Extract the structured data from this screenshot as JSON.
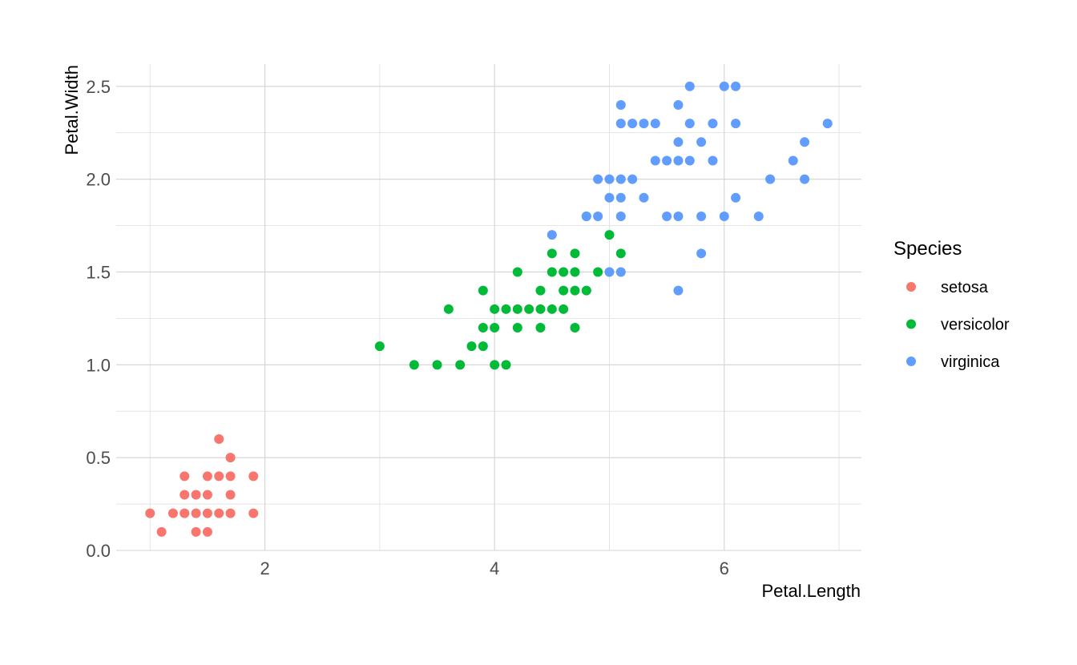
{
  "chart_data": {
    "type": "scatter",
    "title": "",
    "xlabel": "Petal.Length",
    "ylabel": "Petal.Width",
    "xlim": [
      0.705,
      7.195
    ],
    "ylim": [
      0.0,
      2.62
    ],
    "x_ticks": [
      2,
      4,
      6
    ],
    "x_tick_labels": [
      "2",
      "4",
      "6"
    ],
    "x_minor_ticks": [
      1,
      3,
      5,
      7
    ],
    "y_ticks": [
      0.0,
      0.5,
      1.0,
      1.5,
      2.0,
      2.5
    ],
    "y_tick_labels": [
      "0.0",
      "0.5",
      "1.0",
      "1.5",
      "2.0",
      "2.5"
    ],
    "y_minor_ticks": [
      0.25,
      0.75,
      1.25,
      1.75,
      2.25
    ],
    "grid": true,
    "legend": {
      "title": "Species",
      "placement": "right"
    },
    "series": [
      {
        "name": "setosa",
        "color": "#F8766D",
        "points": [
          [
            1.0,
            0.2
          ],
          [
            1.1,
            0.1
          ],
          [
            1.2,
            0.2
          ],
          [
            1.3,
            0.2
          ],
          [
            1.3,
            0.3
          ],
          [
            1.3,
            0.4
          ],
          [
            1.4,
            0.1
          ],
          [
            1.4,
            0.2
          ],
          [
            1.4,
            0.3
          ],
          [
            1.5,
            0.1
          ],
          [
            1.5,
            0.2
          ],
          [
            1.5,
            0.3
          ],
          [
            1.5,
            0.4
          ],
          [
            1.6,
            0.2
          ],
          [
            1.6,
            0.4
          ],
          [
            1.6,
            0.6
          ],
          [
            1.7,
            0.2
          ],
          [
            1.7,
            0.3
          ],
          [
            1.7,
            0.4
          ],
          [
            1.7,
            0.5
          ],
          [
            1.9,
            0.2
          ],
          [
            1.9,
            0.4
          ]
        ]
      },
      {
        "name": "versicolor",
        "color": "#00BA38",
        "points": [
          [
            3.0,
            1.1
          ],
          [
            3.3,
            1.0
          ],
          [
            3.5,
            1.0
          ],
          [
            3.6,
            1.3
          ],
          [
            3.7,
            1.0
          ],
          [
            3.8,
            1.1
          ],
          [
            3.9,
            1.1
          ],
          [
            3.9,
            1.2
          ],
          [
            3.9,
            1.4
          ],
          [
            4.0,
            1.0
          ],
          [
            4.0,
            1.2
          ],
          [
            4.0,
            1.3
          ],
          [
            4.1,
            1.0
          ],
          [
            4.1,
            1.3
          ],
          [
            4.2,
            1.2
          ],
          [
            4.2,
            1.3
          ],
          [
            4.2,
            1.5
          ],
          [
            4.3,
            1.3
          ],
          [
            4.4,
            1.2
          ],
          [
            4.4,
            1.3
          ],
          [
            4.4,
            1.4
          ],
          [
            4.5,
            1.3
          ],
          [
            4.5,
            1.5
          ],
          [
            4.5,
            1.6
          ],
          [
            4.6,
            1.3
          ],
          [
            4.6,
            1.4
          ],
          [
            4.6,
            1.5
          ],
          [
            4.7,
            1.2
          ],
          [
            4.7,
            1.4
          ],
          [
            4.7,
            1.5
          ],
          [
            4.7,
            1.6
          ],
          [
            4.8,
            1.4
          ],
          [
            4.8,
            1.8
          ],
          [
            4.9,
            1.5
          ],
          [
            5.0,
            1.7
          ],
          [
            5.1,
            1.6
          ]
        ]
      },
      {
        "name": "virginica",
        "color": "#619CFF",
        "points": [
          [
            4.5,
            1.7
          ],
          [
            4.8,
            1.8
          ],
          [
            4.9,
            1.8
          ],
          [
            4.9,
            2.0
          ],
          [
            5.0,
            1.5
          ],
          [
            5.0,
            1.9
          ],
          [
            5.0,
            2.0
          ],
          [
            5.1,
            1.5
          ],
          [
            5.1,
            1.8
          ],
          [
            5.1,
            1.9
          ],
          [
            5.1,
            2.0
          ],
          [
            5.1,
            2.3
          ],
          [
            5.1,
            2.4
          ],
          [
            5.2,
            2.0
          ],
          [
            5.2,
            2.3
          ],
          [
            5.3,
            1.9
          ],
          [
            5.3,
            2.3
          ],
          [
            5.4,
            2.1
          ],
          [
            5.4,
            2.3
          ],
          [
            5.5,
            1.8
          ],
          [
            5.5,
            2.1
          ],
          [
            5.6,
            1.4
          ],
          [
            5.6,
            1.8
          ],
          [
            5.6,
            2.1
          ],
          [
            5.6,
            2.2
          ],
          [
            5.6,
            2.4
          ],
          [
            5.7,
            2.1
          ],
          [
            5.7,
            2.3
          ],
          [
            5.7,
            2.5
          ],
          [
            5.8,
            1.6
          ],
          [
            5.8,
            1.8
          ],
          [
            5.8,
            2.2
          ],
          [
            5.9,
            2.1
          ],
          [
            5.9,
            2.3
          ],
          [
            6.0,
            1.8
          ],
          [
            6.0,
            2.5
          ],
          [
            6.1,
            1.9
          ],
          [
            6.1,
            2.3
          ],
          [
            6.1,
            2.5
          ],
          [
            6.3,
            1.8
          ],
          [
            6.4,
            2.0
          ],
          [
            6.6,
            2.1
          ],
          [
            6.7,
            2.0
          ],
          [
            6.7,
            2.2
          ],
          [
            6.9,
            2.3
          ]
        ]
      }
    ]
  }
}
